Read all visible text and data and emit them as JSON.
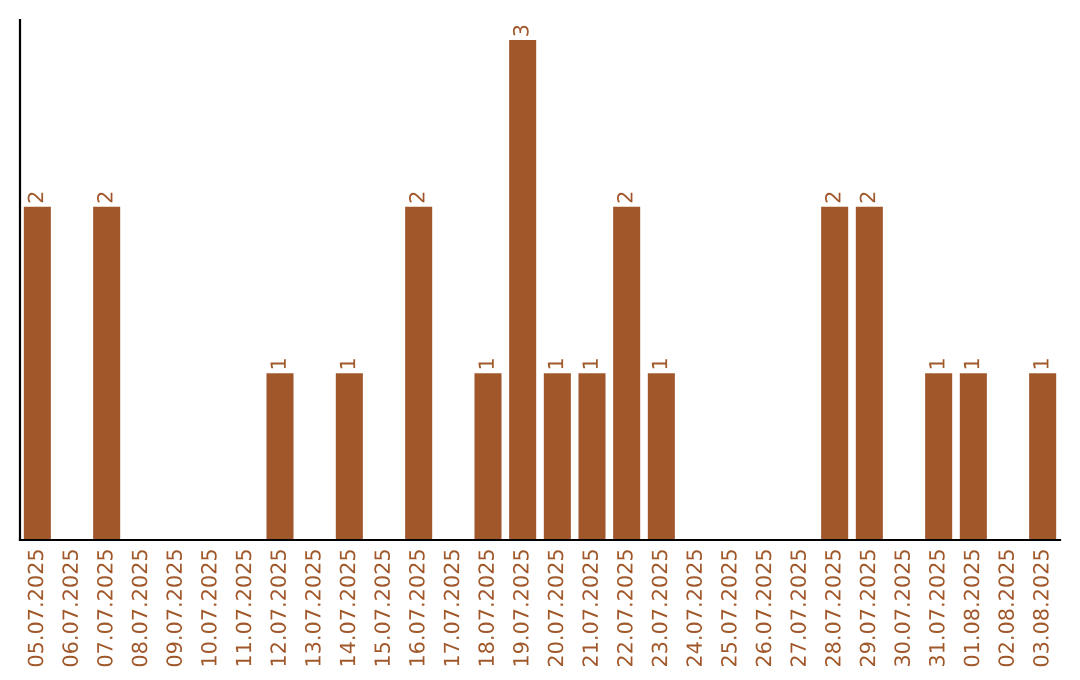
{
  "chart_data": {
    "type": "bar",
    "categories": [
      "05.07.2025",
      "06.07.2025",
      "07.07.2025",
      "08.07.2025",
      "09.07.2025",
      "10.07.2025",
      "11.07.2025",
      "12.07.2025",
      "13.07.2025",
      "14.07.2025",
      "15.07.2025",
      "16.07.2025",
      "17.07.2025",
      "18.07.2025",
      "19.07.2025",
      "20.07.2025",
      "21.07.2025",
      "22.07.2025",
      "23.07.2025",
      "24.07.2025",
      "25.07.2025",
      "26.07.2025",
      "27.07.2025",
      "28.07.2025",
      "29.07.2025",
      "30.07.2025",
      "31.07.2025",
      "01.08.2025",
      "02.08.2025",
      "03.08.2025"
    ],
    "values": [
      2,
      0,
      2,
      0,
      0,
      0,
      0,
      1,
      0,
      1,
      0,
      2,
      0,
      1,
      3,
      1,
      1,
      2,
      1,
      0,
      0,
      0,
      0,
      2,
      2,
      0,
      1,
      1,
      0,
      1
    ],
    "value_labels": [
      "2",
      null,
      "2",
      null,
      null,
      null,
      null,
      "1",
      null,
      "1",
      null,
      "2",
      null,
      "1",
      "3",
      "1",
      "1",
      "2",
      "1",
      null,
      null,
      null,
      null,
      "2",
      "2",
      null,
      "1",
      "1",
      null,
      "1"
    ],
    "color": "#a0572a",
    "ylim": [
      0,
      3.12
    ],
    "tick_labels": "x",
    "grid": false,
    "legend": false
  }
}
